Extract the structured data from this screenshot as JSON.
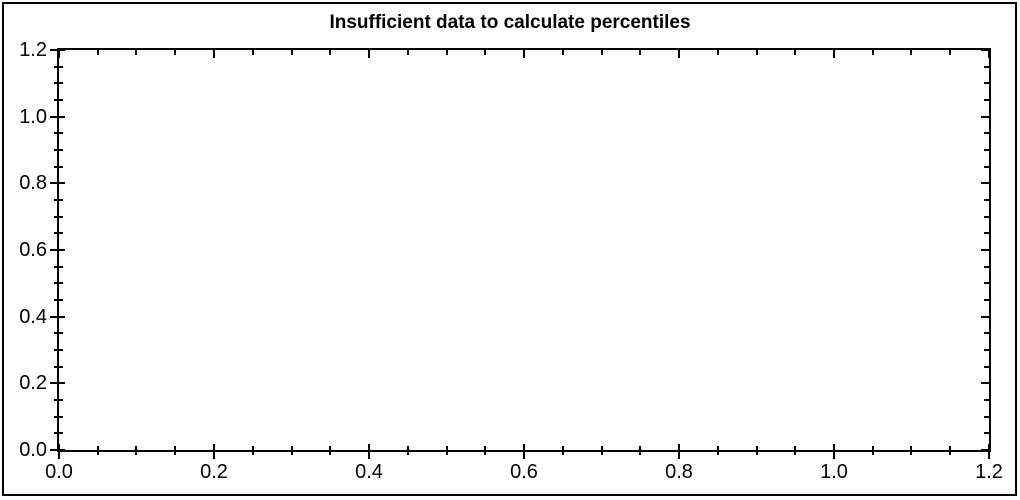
{
  "window": {
    "background": "#ffffff",
    "frame_color": "#000000"
  },
  "chart_data": {
    "type": "scatter",
    "title": "Insufficient data to calculate percentiles",
    "series": [],
    "xlabel": "",
    "ylabel": "",
    "xlim": [
      0.0,
      1.2
    ],
    "ylim": [
      0.0,
      1.2
    ],
    "x_major_ticks": [
      0.0,
      0.2,
      0.4,
      0.6,
      0.8,
      1.0,
      1.2
    ],
    "x_tick_labels": [
      "0.0",
      "0.2",
      "0.4",
      "0.6",
      "0.8",
      "1.0",
      "1.2"
    ],
    "y_major_ticks": [
      0.0,
      0.2,
      0.4,
      0.6,
      0.8,
      1.0,
      1.2
    ],
    "y_tick_labels": [
      "1.2",
      "1.0",
      "0.8",
      "0.6",
      "0.4",
      "0.2",
      "0.0"
    ],
    "y_tick_label_values": [
      1.2,
      1.0,
      0.8,
      0.6,
      0.4,
      0.2,
      0.0
    ],
    "minor_tick_step": 0.05,
    "grid": false,
    "legend": false,
    "frame": "box",
    "tick_style": "left-bottom-crossing, top-right-inward",
    "axis_color": "#000000",
    "text_color": "#000000",
    "plot_background": "#ffffff"
  }
}
